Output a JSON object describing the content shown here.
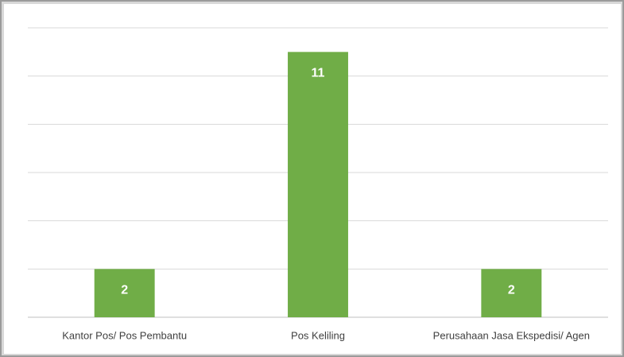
{
  "chart_data": {
    "type": "bar",
    "categories": [
      "Kantor Pos/ Pos Pembantu",
      "Pos Keliling",
      "Perusahaan Jasa Ekspedisi/ Agen"
    ],
    "values": [
      2,
      11,
      2
    ],
    "color": "#70ad47",
    "ylim": [
      0,
      12
    ],
    "yticks": [
      0,
      2,
      4,
      6,
      8,
      10,
      12
    ],
    "grid": true
  }
}
